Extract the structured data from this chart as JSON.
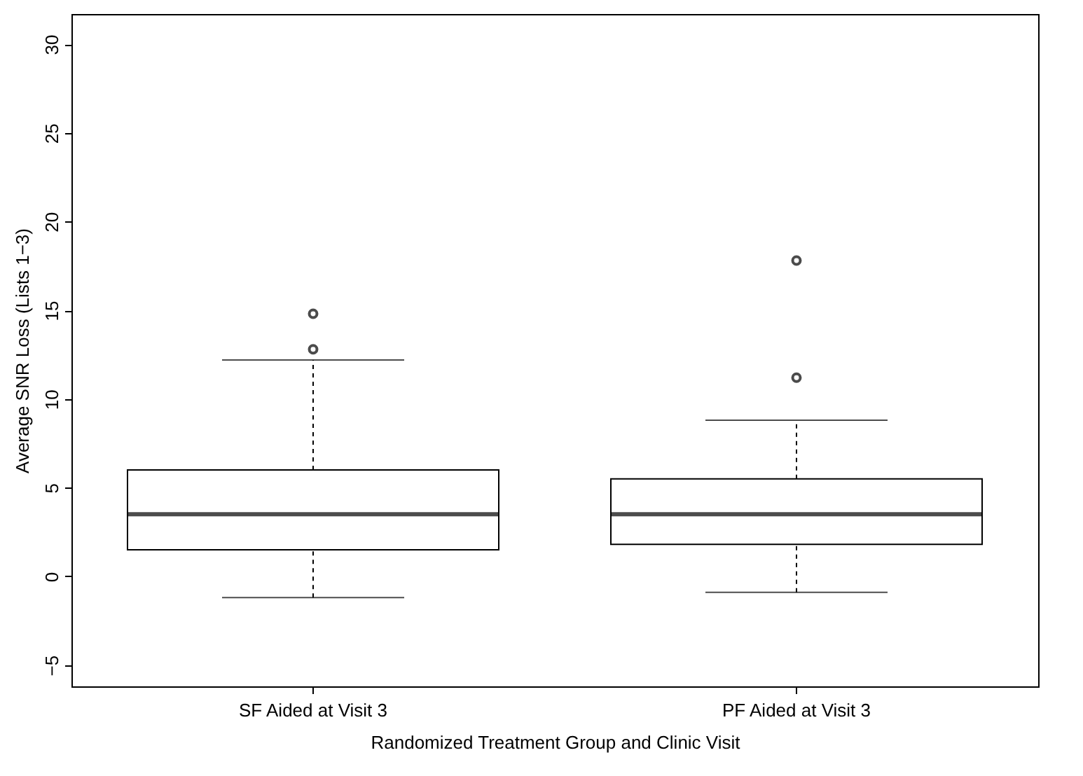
{
  "chart_data": {
    "type": "box",
    "xlabel": "Randomized Treatment Group and Clinic Visit",
    "ylabel": "Average SNR Loss (Lists 1−3)",
    "categories": [
      "SF Aided at Visit 3",
      "PF Aided at Visit 3"
    ],
    "boxes": [
      {
        "low": -1.2,
        "q1": 1.5,
        "median": 3.5,
        "q3": 6.0,
        "high": 12.2,
        "outliers": [
          12.8,
          14.8
        ]
      },
      {
        "low": -0.9,
        "q1": 1.8,
        "median": 3.5,
        "q3": 5.5,
        "high": 8.8,
        "outliers": [
          11.2,
          17.8
        ]
      }
    ],
    "ylim": [
      -6.2,
      31.7
    ],
    "yticks": [
      -5,
      0,
      5,
      10,
      15,
      20,
      25,
      30
    ],
    "grid": false
  }
}
